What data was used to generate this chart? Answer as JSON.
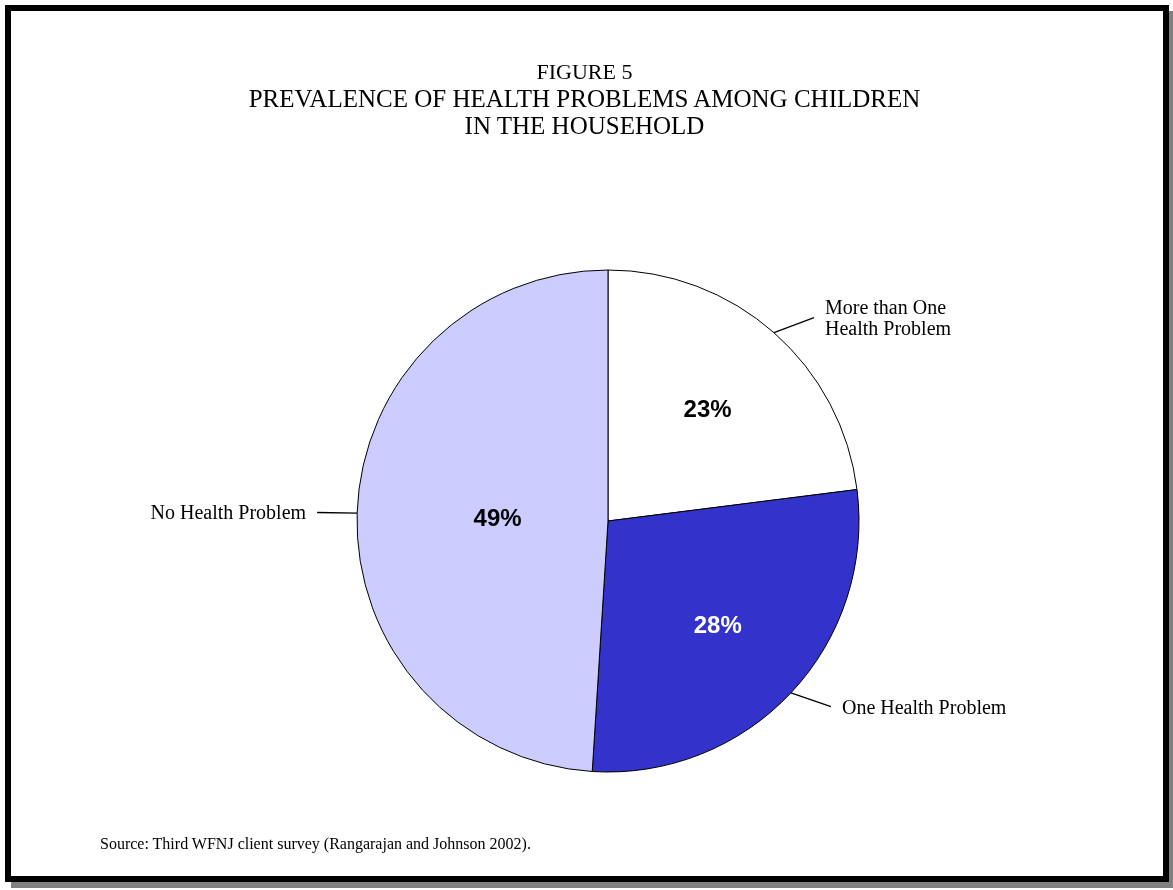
{
  "chart_data": {
    "type": "pie",
    "title": "FIGURE 5",
    "subtitle": "PREVALENCE OF HEALTH PROBLEMS AMONG CHILDREN IN THE HOUSEHOLD",
    "categories": [
      "More than One Health Problem",
      "One Health Problem",
      "No Health Problem"
    ],
    "values": [
      23,
      28,
      49
    ],
    "colors": [
      "#ffffff",
      "#3333cc",
      "#ccccff"
    ],
    "value_labels": [
      "23%",
      "28%",
      "49%"
    ],
    "annotations": [
      "Source: Third WFNJ client survey (Rangarajan and Johnson 2002)."
    ]
  }
}
